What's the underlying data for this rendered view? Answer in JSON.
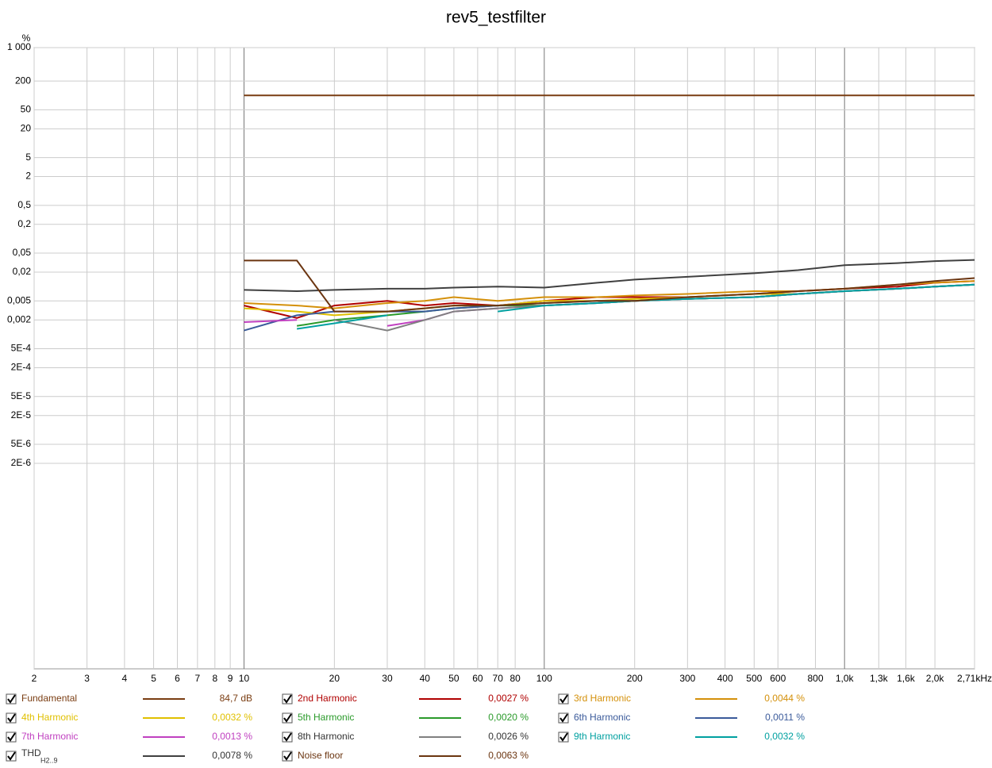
{
  "chart_data": {
    "type": "line",
    "title": "rev5_testfilter",
    "y_unit": "%",
    "log_x": true,
    "log_y": true,
    "grid": true,
    "xlim": [
      2,
      2710
    ],
    "ylim": [
      1e-10,
      1000
    ],
    "xticks": [
      2,
      3,
      4,
      5,
      6,
      7,
      8,
      9,
      10,
      20,
      30,
      40,
      50,
      60,
      70,
      80,
      100,
      200,
      300,
      400,
      500,
      600,
      800,
      {
        "value": 1000,
        "label": "1,0k"
      },
      {
        "value": 1300,
        "label": "1,3k"
      },
      {
        "value": 1600,
        "label": "1,6k"
      },
      {
        "value": 2000,
        "label": "2,0k"
      },
      {
        "value": 2710,
        "label": "2,71kHz"
      }
    ],
    "yticks": [
      {
        "value": 1000,
        "label": "1 000"
      },
      200,
      50,
      20,
      5,
      2,
      {
        "value": 0.5,
        "label": "0,5"
      },
      {
        "value": 0.2,
        "label": "0,2"
      },
      {
        "value": 0.05,
        "label": "0,05"
      },
      {
        "value": 0.02,
        "label": "0,02"
      },
      {
        "value": 0.005,
        "label": "0,005"
      },
      {
        "value": 0.002,
        "label": "0,002"
      },
      {
        "value": 0.0005,
        "label": "5E-4"
      },
      {
        "value": 0.0002,
        "label": "2E-4"
      },
      {
        "value": 5e-05,
        "label": "5E-5"
      },
      {
        "value": 2e-05,
        "label": "2E-5"
      },
      {
        "value": 5e-06,
        "label": "5E-6"
      },
      {
        "value": 2e-06,
        "label": "2E-6"
      }
    ],
    "x": [
      10,
      15,
      20,
      30,
      40,
      50,
      70,
      100,
      150,
      200,
      300,
      500,
      700,
      1000,
      1500,
      2000,
      2710
    ],
    "series": [
      {
        "name": "Fundamental",
        "legend_value": "84,7 dB",
        "color": "#7a3d12",
        "values": [
          100,
          100,
          100,
          100,
          100,
          100,
          100,
          100,
          100,
          100,
          100,
          100,
          100,
          100,
          100,
          100,
          100
        ]
      },
      {
        "name": "2nd Harmonic",
        "legend_value": "0,0027 %",
        "color": "#b00000",
        "values": [
          0.004,
          0.0022,
          0.004,
          0.005,
          0.004,
          0.0045,
          0.004,
          0.005,
          0.006,
          0.006,
          0.006,
          0.007,
          0.008,
          0.009,
          0.01,
          0.012,
          0.013
        ]
      },
      {
        "name": "3rd Harmonic",
        "legend_value": "0,0044 %",
        "color": "#d4900a",
        "values": [
          0.0045,
          0.004,
          0.0035,
          0.0045,
          0.005,
          0.006,
          0.005,
          0.006,
          0.006,
          0.0065,
          0.007,
          0.008,
          0.008,
          0.009,
          0.011,
          0.012,
          0.013
        ]
      },
      {
        "name": "4th Harmonic",
        "legend_value": "0,0032 %",
        "color": "#e0c000",
        "values": [
          0.0035,
          0.003,
          0.0025,
          0.003,
          0.0035,
          0.004,
          0.004,
          0.005,
          0.005,
          0.0055,
          0.006,
          0.007,
          0.007,
          0.008,
          0.009,
          0.01,
          0.011
        ]
      },
      {
        "name": "5th Harmonic",
        "legend_value": "0,0020 %",
        "color": "#2a9a2a",
        "values": [
          null,
          0.0015,
          0.002,
          0.0025,
          0.003,
          0.0035,
          0.004,
          0.004,
          0.0045,
          0.005,
          0.0055,
          0.006,
          0.007,
          0.008,
          0.009,
          0.01,
          0.011
        ]
      },
      {
        "name": "6th Harmonic",
        "legend_value": "0,0011 %",
        "color": "#3a5a9a",
        "values": [
          0.0012,
          0.0025,
          0.003,
          0.003,
          0.003,
          0.0035,
          0.004,
          0.0045,
          0.005,
          0.005,
          0.0055,
          0.006,
          0.007,
          0.008,
          0.009,
          0.01,
          0.011
        ]
      },
      {
        "name": "7th Harmonic",
        "legend_value": "0,0013 %",
        "color": "#c040c0",
        "values": [
          0.0018,
          0.002,
          null,
          0.0015,
          0.002,
          0.003,
          0.0035,
          0.004,
          0.0045,
          0.005,
          0.0055,
          0.006,
          0.007,
          0.008,
          0.009,
          0.01,
          0.011
        ]
      },
      {
        "name": "8th Harmonic",
        "legend_value": "0,0026 %",
        "color": "#808080",
        "values": [
          null,
          null,
          0.002,
          0.0012,
          0.002,
          0.003,
          0.0035,
          0.004,
          0.0045,
          0.005,
          0.0055,
          0.006,
          0.007,
          0.008,
          0.009,
          0.01,
          0.011
        ]
      },
      {
        "name": "9th Harmonic",
        "legend_value": "0,0032 %",
        "color": "#00a0a0",
        "values": [
          null,
          0.0013,
          0.0017,
          0.0025,
          null,
          null,
          0.003,
          0.004,
          0.0045,
          0.005,
          0.0055,
          0.006,
          0.007,
          0.008,
          0.009,
          0.01,
          0.011
        ]
      },
      {
        "name": "THD",
        "name_subscript": "H2..9",
        "legend_value": "0,0078 %",
        "color": "#404040",
        "values": [
          0.0085,
          0.008,
          0.0085,
          0.009,
          0.009,
          0.0095,
          0.01,
          0.0095,
          0.012,
          0.014,
          0.016,
          0.019,
          0.022,
          0.028,
          0.031,
          0.034,
          0.036
        ]
      },
      {
        "name": "Noise floor",
        "legend_value": "0,0063 %",
        "color": "#6b3510",
        "values": [
          0.035,
          0.035,
          0.003,
          0.003,
          0.0035,
          0.004,
          0.004,
          0.0045,
          0.005,
          0.005,
          0.006,
          0.007,
          0.008,
          0.009,
          0.011,
          0.013,
          0.015
        ]
      }
    ]
  }
}
